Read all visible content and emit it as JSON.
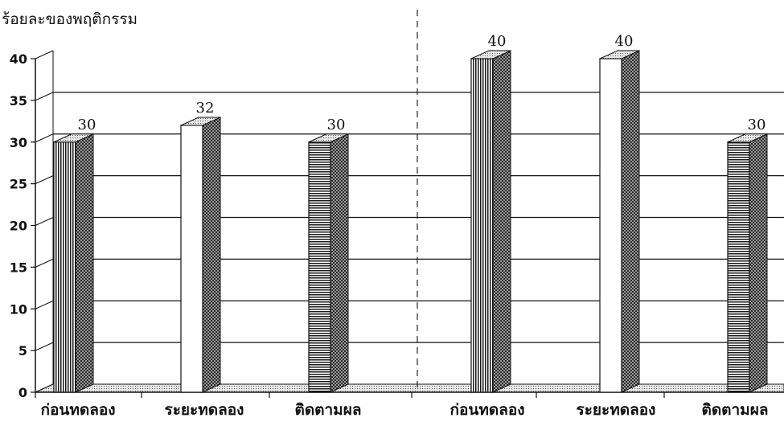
{
  "chart_data": {
    "type": "bar",
    "title": "ร้อยละของพฤติกรรม",
    "ylim": [
      0,
      40
    ],
    "yticks": [
      0,
      5,
      10,
      15,
      20,
      25,
      30,
      35,
      40
    ],
    "grid": true,
    "groups": [
      {
        "bars": [
          {
            "category": "ก่อนทดลอง",
            "value": 30,
            "label": "30",
            "pattern": "vertical"
          },
          {
            "category": "ระยะทดลอง",
            "value": 32,
            "label": "32",
            "pattern": "white"
          },
          {
            "category": "ติดตามผล",
            "value": 30,
            "label": "30",
            "pattern": "horizontal"
          }
        ]
      },
      {
        "bars": [
          {
            "category": "ก่อนทดลอง",
            "value": 40,
            "label": "40",
            "pattern": "vertical"
          },
          {
            "category": "ระยะทดลอง",
            "value": 40,
            "label": "40",
            "pattern": "white"
          },
          {
            "category": "ติดตามผล",
            "value": 30,
            "label": "30",
            "pattern": "horizontal"
          }
        ]
      }
    ]
  }
}
